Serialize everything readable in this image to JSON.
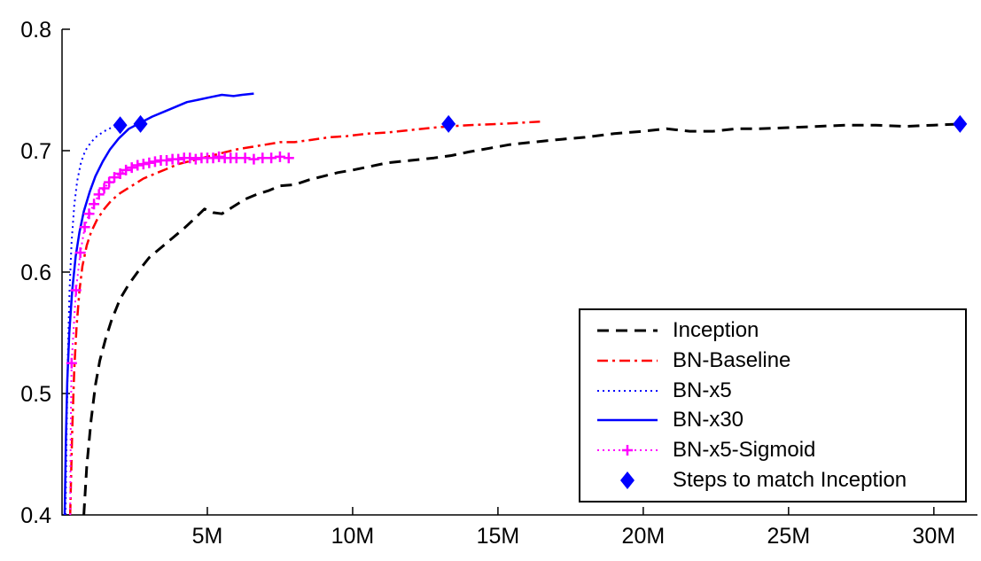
{
  "figure": {
    "background": "#ffffff",
    "axis_color": "#000000"
  },
  "chart_data": {
    "type": "line",
    "title": "",
    "xlabel": "",
    "ylabel": "",
    "x_unit": "M",
    "xlim": [
      0,
      31.5
    ],
    "ylim": [
      0.4,
      0.8
    ],
    "grid": false,
    "legend_position": "lower-right",
    "x_ticks": [
      {
        "value": 5,
        "label": "5M"
      },
      {
        "value": 10,
        "label": "10M"
      },
      {
        "value": 15,
        "label": "15M"
      },
      {
        "value": 20,
        "label": "20M"
      },
      {
        "value": 25,
        "label": "25M"
      },
      {
        "value": 30,
        "label": "30M"
      }
    ],
    "y_ticks": [
      {
        "value": 0.4,
        "label": "0.4"
      },
      {
        "value": 0.5,
        "label": "0.5"
      },
      {
        "value": 0.6,
        "label": "0.6"
      },
      {
        "value": 0.7,
        "label": "0.7"
      },
      {
        "value": 0.8,
        "label": "0.8"
      }
    ],
    "series": [
      {
        "name": "Inception",
        "color": "#000000",
        "line_style": "dashed",
        "marker": null,
        "points": [
          [
            0.75,
            0.4
          ],
          [
            0.85,
            0.44
          ],
          [
            1.0,
            0.478
          ],
          [
            1.15,
            0.507
          ],
          [
            1.3,
            0.527
          ],
          [
            1.5,
            0.545
          ],
          [
            1.7,
            0.56
          ],
          [
            2.0,
            0.578
          ],
          [
            2.3,
            0.59
          ],
          [
            2.6,
            0.6
          ],
          [
            3.0,
            0.612
          ],
          [
            3.4,
            0.62
          ],
          [
            3.8,
            0.628
          ],
          [
            4.2,
            0.636
          ],
          [
            4.6,
            0.645
          ],
          [
            4.9,
            0.652
          ],
          [
            5.2,
            0.649
          ],
          [
            5.5,
            0.648
          ],
          [
            5.9,
            0.654
          ],
          [
            6.3,
            0.66
          ],
          [
            6.7,
            0.664
          ],
          [
            7.1,
            0.667
          ],
          [
            7.5,
            0.671
          ],
          [
            8.0,
            0.672
          ],
          [
            8.5,
            0.676
          ],
          [
            9.0,
            0.679
          ],
          [
            9.5,
            0.682
          ],
          [
            10.0,
            0.684
          ],
          [
            10.6,
            0.687
          ],
          [
            11.2,
            0.69
          ],
          [
            12.0,
            0.692
          ],
          [
            12.8,
            0.694
          ],
          [
            13.4,
            0.696
          ],
          [
            14.0,
            0.699
          ],
          [
            14.7,
            0.702
          ],
          [
            15.4,
            0.705
          ],
          [
            16.2,
            0.707
          ],
          [
            17.0,
            0.709
          ],
          [
            18.0,
            0.711
          ],
          [
            19.0,
            0.714
          ],
          [
            20.0,
            0.716
          ],
          [
            20.8,
            0.718
          ],
          [
            21.6,
            0.716
          ],
          [
            22.4,
            0.716
          ],
          [
            23.2,
            0.718
          ],
          [
            24.0,
            0.718
          ],
          [
            25.0,
            0.719
          ],
          [
            26.0,
            0.72
          ],
          [
            27.0,
            0.721
          ],
          [
            28.0,
            0.721
          ],
          [
            29.0,
            0.72
          ],
          [
            30.0,
            0.721
          ],
          [
            30.9,
            0.722
          ]
        ]
      },
      {
        "name": "BN-Baseline",
        "color": "#ff0000",
        "line_style": "dashdot",
        "marker": null,
        "points": [
          [
            0.28,
            0.4
          ],
          [
            0.35,
            0.47
          ],
          [
            0.42,
            0.52
          ],
          [
            0.5,
            0.555
          ],
          [
            0.6,
            0.585
          ],
          [
            0.7,
            0.605
          ],
          [
            0.85,
            0.622
          ],
          [
            1.0,
            0.633
          ],
          [
            1.2,
            0.643
          ],
          [
            1.45,
            0.652
          ],
          [
            1.7,
            0.659
          ],
          [
            2.0,
            0.665
          ],
          [
            2.4,
            0.671
          ],
          [
            2.8,
            0.677
          ],
          [
            3.2,
            0.681
          ],
          [
            3.6,
            0.685
          ],
          [
            4.0,
            0.689
          ],
          [
            4.5,
            0.692
          ],
          [
            5.0,
            0.695
          ],
          [
            5.5,
            0.698
          ],
          [
            6.0,
            0.701
          ],
          [
            6.5,
            0.703
          ],
          [
            7.0,
            0.705
          ],
          [
            7.5,
            0.707
          ],
          [
            8.0,
            0.707
          ],
          [
            8.6,
            0.709
          ],
          [
            9.2,
            0.711
          ],
          [
            9.8,
            0.712
          ],
          [
            10.5,
            0.714
          ],
          [
            11.2,
            0.715
          ],
          [
            12.0,
            0.717
          ],
          [
            12.8,
            0.719
          ],
          [
            13.3,
            0.72
          ],
          [
            14.0,
            0.721
          ],
          [
            15.0,
            0.722
          ],
          [
            15.8,
            0.723
          ],
          [
            16.5,
            0.724
          ]
        ]
      },
      {
        "name": "BN-x5",
        "color": "#0000ff",
        "line_style": "dotted",
        "marker": null,
        "points": [
          [
            0.12,
            0.4
          ],
          [
            0.16,
            0.47
          ],
          [
            0.2,
            0.53
          ],
          [
            0.26,
            0.585
          ],
          [
            0.33,
            0.625
          ],
          [
            0.42,
            0.655
          ],
          [
            0.52,
            0.675
          ],
          [
            0.65,
            0.69
          ],
          [
            0.8,
            0.7
          ],
          [
            1.0,
            0.707
          ],
          [
            1.2,
            0.712
          ],
          [
            1.45,
            0.716
          ],
          [
            1.7,
            0.719
          ],
          [
            2.0,
            0.721
          ]
        ]
      },
      {
        "name": "BN-x30",
        "color": "#0000ff",
        "line_style": "solid",
        "marker": null,
        "points": [
          [
            0.09,
            0.4
          ],
          [
            0.13,
            0.46
          ],
          [
            0.18,
            0.51
          ],
          [
            0.25,
            0.55
          ],
          [
            0.35,
            0.585
          ],
          [
            0.47,
            0.613
          ],
          [
            0.6,
            0.633
          ],
          [
            0.75,
            0.65
          ],
          [
            0.95,
            0.666
          ],
          [
            1.15,
            0.679
          ],
          [
            1.4,
            0.691
          ],
          [
            1.65,
            0.701
          ],
          [
            1.95,
            0.71
          ],
          [
            2.3,
            0.718
          ],
          [
            2.7,
            0.723
          ],
          [
            3.1,
            0.728
          ],
          [
            3.5,
            0.732
          ],
          [
            3.9,
            0.736
          ],
          [
            4.3,
            0.74
          ],
          [
            4.7,
            0.742
          ],
          [
            5.1,
            0.744
          ],
          [
            5.5,
            0.746
          ],
          [
            5.9,
            0.745
          ],
          [
            6.2,
            0.746
          ],
          [
            6.6,
            0.747
          ]
        ]
      },
      {
        "name": "BN-x5-Sigmoid",
        "color": "#ff00ff",
        "line_style": "dotted",
        "marker": "plus",
        "lead_in": [
          [
            0.28,
            0.4
          ],
          [
            0.3,
            0.47
          ]
        ],
        "points": [
          [
            0.33,
            0.525
          ],
          [
            0.48,
            0.585
          ],
          [
            0.63,
            0.616
          ],
          [
            0.78,
            0.637
          ],
          [
            0.93,
            0.648
          ],
          [
            1.1,
            0.656
          ],
          [
            1.27,
            0.664
          ],
          [
            1.45,
            0.669
          ],
          [
            1.62,
            0.674
          ],
          [
            1.8,
            0.678
          ],
          [
            2.0,
            0.681
          ],
          [
            2.2,
            0.684
          ],
          [
            2.4,
            0.686
          ],
          [
            2.6,
            0.688
          ],
          [
            2.8,
            0.689
          ],
          [
            3.0,
            0.69
          ],
          [
            3.2,
            0.691
          ],
          [
            3.4,
            0.692
          ],
          [
            3.6,
            0.692
          ],
          [
            3.8,
            0.693
          ],
          [
            4.0,
            0.693
          ],
          [
            4.2,
            0.694
          ],
          [
            4.4,
            0.694
          ],
          [
            4.6,
            0.693
          ],
          [
            4.8,
            0.694
          ],
          [
            5.0,
            0.694
          ],
          [
            5.2,
            0.694
          ],
          [
            5.4,
            0.695
          ],
          [
            5.6,
            0.694
          ],
          [
            5.8,
            0.694
          ],
          [
            6.0,
            0.694
          ],
          [
            6.3,
            0.694
          ],
          [
            6.6,
            0.693
          ],
          [
            6.9,
            0.694
          ],
          [
            7.2,
            0.694
          ],
          [
            7.5,
            0.695
          ],
          [
            7.8,
            0.694
          ]
        ]
      },
      {
        "name": "Steps to match Inception",
        "color": "#0000ff",
        "line_style": "none",
        "marker": "diamond",
        "points": [
          [
            2.0,
            0.721
          ],
          [
            2.7,
            0.722
          ],
          [
            13.3,
            0.722
          ],
          [
            30.9,
            0.722
          ]
        ]
      }
    ]
  }
}
